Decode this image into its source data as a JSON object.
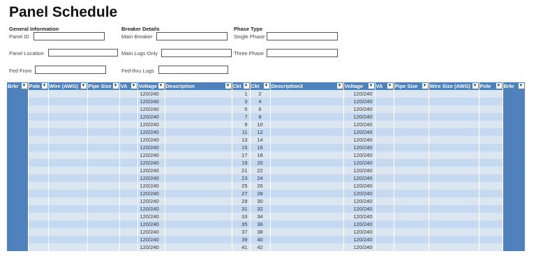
{
  "title": "Panel Schedule",
  "general": {
    "heading": "General Information",
    "panel_id": "Panel ID",
    "panel_location": "Panel Location",
    "fed_from": "Fed From"
  },
  "breaker": {
    "heading": "Breaker Details",
    "main_breaker": "Main Breaker",
    "main_lugs_only": "Main Lugs Only",
    "fed_thru_lugs": "Fed-thru Lugs"
  },
  "phase": {
    "heading": "Phase Type",
    "single_phase": "Single Phase",
    "three_phase": "Three Phase"
  },
  "table": {
    "columns": [
      "Brkr",
      "Pole",
      "Wire (AWG)",
      "Pipe Size",
      "VA",
      "Voltage",
      "Description",
      "Ckt",
      "Ckt",
      "Description3",
      "Voltage",
      "VA",
      "Pipe Size",
      "Wire Size (AWG)",
      "Pole",
      "Brkr"
    ],
    "rows": [
      {
        "voltage_left": "120/240",
        "ckt_left": 1,
        "ckt_right": 2,
        "voltage_right": "120/240"
      },
      {
        "voltage_left": "120/240",
        "ckt_left": 3,
        "ckt_right": 4,
        "voltage_right": "120/240"
      },
      {
        "voltage_left": "120/240",
        "ckt_left": 5,
        "ckt_right": 6,
        "voltage_right": "120/240"
      },
      {
        "voltage_left": "120/240",
        "ckt_left": 7,
        "ckt_right": 8,
        "voltage_right": "120/240"
      },
      {
        "voltage_left": "120/240",
        "ckt_left": 9,
        "ckt_right": 10,
        "voltage_right": "120/240"
      },
      {
        "voltage_left": "120/240",
        "ckt_left": 11,
        "ckt_right": 12,
        "voltage_right": "120/240"
      },
      {
        "voltage_left": "120/240",
        "ckt_left": 13,
        "ckt_right": 14,
        "voltage_right": "120/240"
      },
      {
        "voltage_left": "120/240",
        "ckt_left": 15,
        "ckt_right": 16,
        "voltage_right": "120/240"
      },
      {
        "voltage_left": "120/240",
        "ckt_left": 17,
        "ckt_right": 18,
        "voltage_right": "120/240"
      },
      {
        "voltage_left": "120/240",
        "ckt_left": 19,
        "ckt_right": 20,
        "voltage_right": "120/240"
      },
      {
        "voltage_left": "120/240",
        "ckt_left": 21,
        "ckt_right": 22,
        "voltage_right": "120/240"
      },
      {
        "voltage_left": "120/240",
        "ckt_left": 23,
        "ckt_right": 24,
        "voltage_right": "120/240"
      },
      {
        "voltage_left": "120/240",
        "ckt_left": 25,
        "ckt_right": 26,
        "voltage_right": "120/240"
      },
      {
        "voltage_left": "120/240",
        "ckt_left": 27,
        "ckt_right": 28,
        "voltage_right": "120/240"
      },
      {
        "voltage_left": "120/240",
        "ckt_left": 29,
        "ckt_right": 30,
        "voltage_right": "120/240"
      },
      {
        "voltage_left": "120/240",
        "ckt_left": 31,
        "ckt_right": 32,
        "voltage_right": "120/240"
      },
      {
        "voltage_left": "120/240",
        "ckt_left": 33,
        "ckt_right": 34,
        "voltage_right": "120/240"
      },
      {
        "voltage_left": "120/240",
        "ckt_left": 35,
        "ckt_right": 36,
        "voltage_right": "120/240"
      },
      {
        "voltage_left": "120/240",
        "ckt_left": 37,
        "ckt_right": 38,
        "voltage_right": "120/240"
      },
      {
        "voltage_left": "120/240",
        "ckt_left": 39,
        "ckt_right": 40,
        "voltage_right": "120/240"
      },
      {
        "voltage_left": "120/240",
        "ckt_left": 41,
        "ckt_right": 42,
        "voltage_right": "120/240"
      }
    ]
  },
  "colors": {
    "header": "#4f81bd",
    "row_light": "#dce6f1",
    "row_dark": "#c5d9f1"
  }
}
